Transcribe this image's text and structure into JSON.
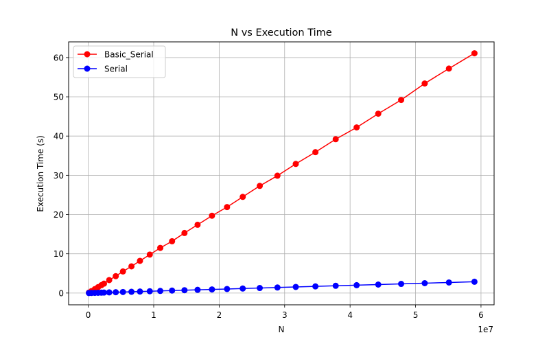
{
  "chart_data": {
    "type": "line",
    "title": "N vs Execution Time",
    "xlabel": "N",
    "ylabel": "Execution Time (s)",
    "x_offset_label": "1e7",
    "xlim": [
      -3000000,
      62000000
    ],
    "ylim": [
      -3,
      64
    ],
    "x_ticks": [
      0,
      10000000,
      20000000,
      30000000,
      40000000,
      50000000,
      60000000
    ],
    "x_tick_labels": [
      "0",
      "1",
      "2",
      "3",
      "4",
      "5",
      "6"
    ],
    "y_ticks": [
      0,
      10,
      20,
      30,
      40,
      50,
      60
    ],
    "y_tick_labels": [
      "0",
      "10",
      "20",
      "30",
      "40",
      "50",
      "60"
    ],
    "grid": true,
    "legend_position": "top-left",
    "x": [
      100000,
      500000,
      1000000,
      1500000,
      2000000,
      2400000,
      3200000,
      4200000,
      5300000,
      6600000,
      7900000,
      9400000,
      11000000,
      12800000,
      14700000,
      16700000,
      18900000,
      21200000,
      23600000,
      26200000,
      28900000,
      31700000,
      34700000,
      37800000,
      41000000,
      44300000,
      47800000,
      51400000,
      55100000,
      59000000
    ],
    "series": [
      {
        "name": "Basic_Serial",
        "color": "#ff0000",
        "values": [
          0.1,
          0.5,
          1.0,
          1.5,
          2.0,
          2.4,
          3.3,
          4.3,
          5.5,
          6.8,
          8.2,
          9.8,
          11.5,
          13.2,
          15.3,
          17.4,
          19.7,
          21.9,
          24.5,
          27.3,
          29.9,
          32.9,
          35.9,
          39.2,
          42.2,
          45.7,
          49.2,
          53.4,
          57.2,
          61.1
        ]
      },
      {
        "name": "Serial",
        "color": "#0000ff",
        "values": [
          0.0,
          0.02,
          0.05,
          0.07,
          0.1,
          0.12,
          0.16,
          0.21,
          0.26,
          0.32,
          0.38,
          0.46,
          0.54,
          0.63,
          0.72,
          0.82,
          0.92,
          1.03,
          1.15,
          1.28,
          1.41,
          1.55,
          1.7,
          1.85,
          2.0,
          2.16,
          2.33,
          2.51,
          2.69,
          2.88
        ]
      }
    ]
  }
}
